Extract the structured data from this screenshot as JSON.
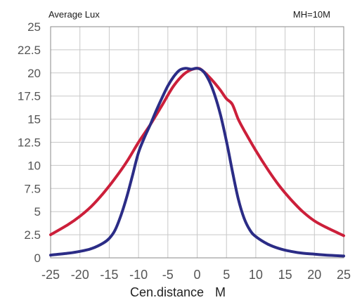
{
  "chart_data": {
    "type": "line",
    "title": "Average Lux",
    "annotation": "MH=10M",
    "xlabel": "Cen.distance",
    "xunit": "M",
    "ylabel": "",
    "xlim": [
      -25,
      25
    ],
    "ylim": [
      0,
      25
    ],
    "x_ticks": [
      "-25",
      "-20",
      "-15",
      "-10",
      "-5",
      "0",
      "5",
      "10",
      "15",
      "20",
      "25"
    ],
    "y_ticks": [
      "0",
      "2.5",
      "5",
      "7.5",
      "10",
      "12.5",
      "15",
      "17.5",
      "20",
      "22.5",
      "25"
    ],
    "grid": true,
    "series": [
      {
        "color": "#cc1f3a",
        "x": [
          -25,
          -22,
          -20,
          -18,
          -16,
          -14,
          -12,
          -10,
          -8,
          -6,
          -4,
          -2,
          0,
          1,
          2,
          3,
          4,
          5,
          6,
          7,
          8,
          10,
          12,
          14,
          16,
          18,
          20,
          22,
          25
        ],
        "y": [
          2.5,
          3.6,
          4.5,
          5.6,
          7.0,
          8.6,
          10.4,
          12.5,
          14.4,
          16.5,
          18.6,
          20.0,
          20.5,
          20.2,
          19.6,
          18.9,
          18.1,
          17.2,
          16.6,
          15.0,
          13.8,
          11.6,
          9.6,
          7.8,
          6.3,
          5.0,
          4.0,
          3.3,
          2.4
        ]
      },
      {
        "color": "#2b2c86",
        "x": [
          -25,
          -22,
          -20,
          -18,
          -16,
          -15,
          -14,
          -13,
          -12,
          -11,
          -10,
          -9,
          -8,
          -7,
          -6,
          -5,
          -4,
          -3,
          -2,
          -1,
          0,
          1,
          2,
          3,
          4,
          5,
          6,
          7,
          8,
          9,
          10,
          12,
          14,
          16,
          18,
          20,
          22,
          25
        ],
        "y": [
          0.3,
          0.5,
          0.7,
          1.0,
          1.6,
          2.1,
          3.0,
          4.6,
          6.6,
          9.0,
          11.4,
          13.0,
          14.4,
          15.9,
          17.3,
          18.6,
          19.6,
          20.3,
          20.5,
          20.4,
          20.5,
          20.2,
          19.2,
          17.6,
          15.4,
          12.6,
          9.4,
          6.4,
          4.3,
          3.0,
          2.3,
          1.5,
          1.0,
          0.7,
          0.5,
          0.4,
          0.3,
          0.2
        ]
      }
    ]
  }
}
